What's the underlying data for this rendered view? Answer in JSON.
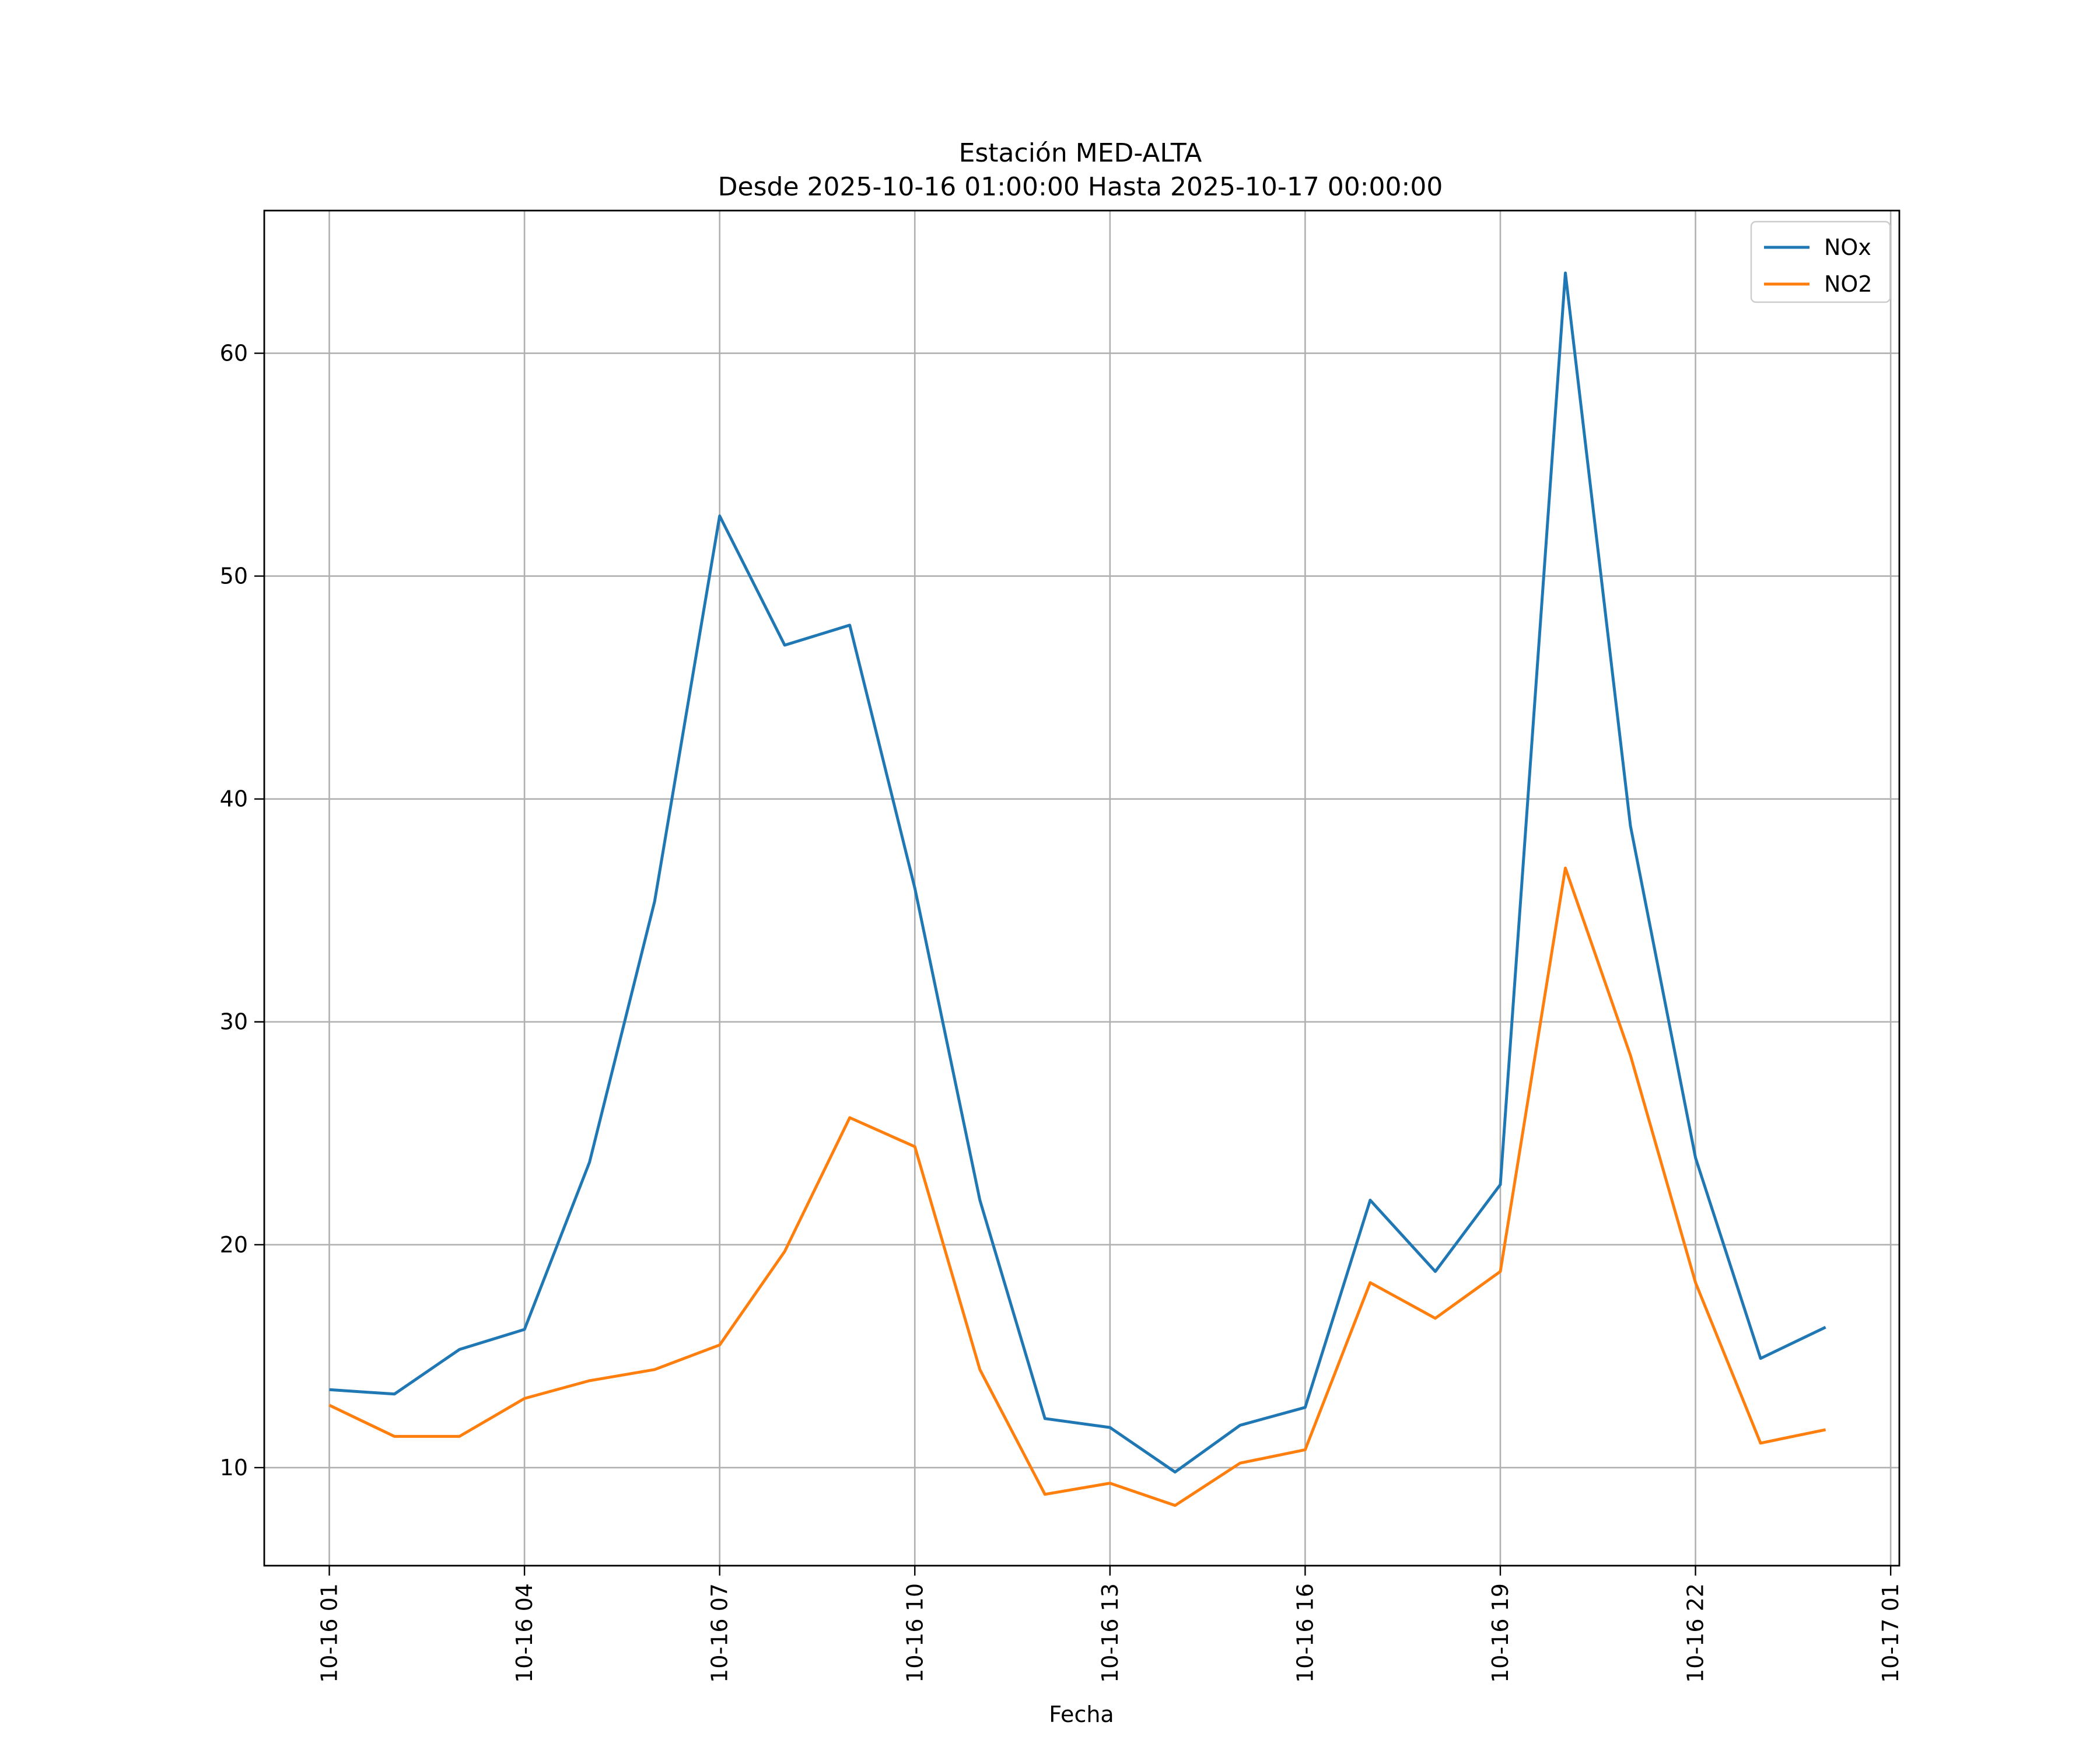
{
  "chart_data": {
    "type": "line",
    "title": "Estación MED-ALTA",
    "subtitle": "Desde 2025-10-16 01:00:00 Hasta 2025-10-17 00:00:00",
    "xlabel": "Fecha",
    "ylabel": "",
    "x": [
      "2025-10-16 01:00",
      "2025-10-16 02:00",
      "2025-10-16 03:00",
      "2025-10-16 04:00",
      "2025-10-16 05:00",
      "2025-10-16 06:00",
      "2025-10-16 07:00",
      "2025-10-16 08:00",
      "2025-10-16 09:00",
      "2025-10-16 10:00",
      "2025-10-16 11:00",
      "2025-10-16 12:00",
      "2025-10-16 13:00",
      "2025-10-16 14:00",
      "2025-10-16 15:00",
      "2025-10-16 16:00",
      "2025-10-16 17:00",
      "2025-10-16 18:00",
      "2025-10-16 19:00",
      "2025-10-16 20:00",
      "2025-10-16 21:00",
      "2025-10-16 22:00",
      "2025-10-16 23:00",
      "2025-10-17 00:00"
    ],
    "xticks": [
      "10-16 01",
      "10-16 04",
      "10-16 07",
      "10-16 10",
      "10-16 13",
      "10-16 16",
      "10-16 19",
      "10-16 22",
      "10-17 01"
    ],
    "yticks": [
      10,
      20,
      30,
      40,
      50,
      60
    ],
    "ylim": [
      5.6,
      66.4
    ],
    "xlim": [
      "2025-10-16 00:00",
      "2025-10-17 01:08"
    ],
    "grid": true,
    "legend_position": "top-right",
    "series": [
      {
        "name": "NOx",
        "color": "#1f77b4",
        "values": [
          13.5,
          13.3,
          15.3,
          16.2,
          23.7,
          35.4,
          52.7,
          46.9,
          47.8,
          36.0,
          22.0,
          12.2,
          11.8,
          9.8,
          11.9,
          12.7,
          22.0,
          18.8,
          22.7,
          63.6,
          38.8,
          23.9,
          14.9,
          16.3
        ]
      },
      {
        "name": "NO2",
        "color": "#ff7f0e",
        "values": [
          12.8,
          11.4,
          11.4,
          13.1,
          13.9,
          14.4,
          15.5,
          19.7,
          25.7,
          24.4,
          14.4,
          8.8,
          9.3,
          8.3,
          10.2,
          10.8,
          18.3,
          16.7,
          18.8,
          36.9,
          28.5,
          18.3,
          11.1,
          11.7
        ]
      }
    ]
  }
}
